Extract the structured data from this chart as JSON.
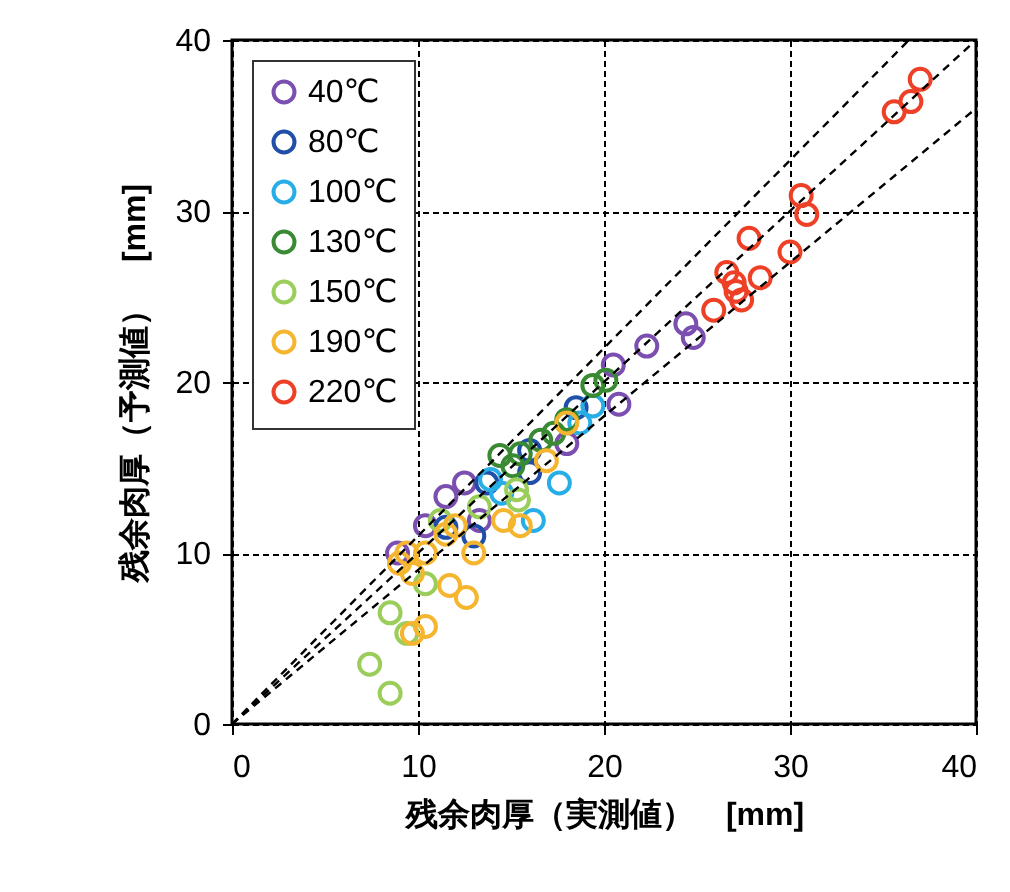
{
  "chart_data": {
    "type": "scatter",
    "xlabel": "残余肉厚（実測値）　[mm]",
    "ylabel": "残余肉厚（予測値）　[mm]",
    "xlim": [
      0,
      40
    ],
    "ylim": [
      0,
      40
    ],
    "xticks": [
      0,
      10,
      20,
      30,
      40
    ],
    "yticks": [
      0,
      10,
      20,
      30,
      40
    ],
    "grid": true,
    "legend": "top left",
    "marker": "circle",
    "series": [
      {
        "name": "40℃",
        "color": "#7a4fb0",
        "x": [
          22.3,
          24.4,
          24.8,
          20.5,
          20.8,
          8.9,
          11.5,
          12.5,
          10.4,
          13.3,
          18.0
        ],
        "values": [
          22.1,
          23.4,
          22.6,
          21.0,
          18.7,
          10.0,
          13.3,
          14.1,
          11.6,
          11.9,
          16.4
        ]
      },
      {
        "name": "80℃",
        "color": "#1f4fa8",
        "x": [
          13.7,
          13.0,
          16.0,
          16.0,
          11.5,
          18.5
        ],
        "values": [
          14.1,
          11.0,
          14.7,
          16.0,
          11.5,
          18.5
        ]
      },
      {
        "name": "100℃",
        "color": "#27aee6",
        "x": [
          17.6,
          16.2,
          18.7,
          19.4,
          13.9,
          14.5
        ],
        "values": [
          14.1,
          11.9,
          17.6,
          18.6,
          14.3,
          13.5
        ]
      },
      {
        "name": "130℃",
        "color": "#3a8a33",
        "x": [
          14.4,
          15.5,
          16.6,
          18.0,
          19.4,
          20.1,
          17.3,
          15.1
        ],
        "values": [
          15.7,
          15.8,
          16.6,
          17.8,
          19.8,
          20.1,
          17.0,
          15.1
        ]
      },
      {
        "name": "150℃",
        "color": "#9acd5a",
        "x": [
          15.3,
          15.4,
          11.2,
          10.4,
          8.5,
          9.4,
          7.4,
          8.5,
          13.3
        ],
        "values": [
          13.7,
          13.1,
          11.9,
          8.2,
          6.5,
          5.3,
          3.5,
          1.8,
          12.7
        ]
      },
      {
        "name": "190℃",
        "color": "#f5b52e",
        "x": [
          9.4,
          9.7,
          10.4,
          11.5,
          12.0,
          13.0,
          11.7,
          12.6,
          10.4,
          9.7,
          14.6,
          15.5,
          16.9,
          18.0,
          9.0
        ],
        "values": [
          10.0,
          8.8,
          10.0,
          11.1,
          11.6,
          10.0,
          8.1,
          7.4,
          5.7,
          5.3,
          11.9,
          11.6,
          15.4,
          17.6,
          9.4
        ]
      },
      {
        "name": "220℃",
        "color": "#ee4026",
        "x": [
          37.0,
          36.5,
          35.6,
          30.6,
          30.9,
          30.0,
          27.8,
          26.6,
          27.0,
          27.1,
          27.4,
          28.4,
          25.9
        ],
        "values": [
          37.7,
          36.4,
          35.8,
          30.9,
          29.8,
          27.6,
          28.4,
          26.4,
          25.8,
          25.3,
          24.8,
          26.1,
          24.2
        ]
      },
      {
        "type": "line",
        "color": "#000000",
        "line_style": "dashed",
        "marker": "none",
        "x": [
          0,
          36.4
        ],
        "values": [
          0,
          40
        ]
      },
      {
        "type": "line",
        "color": "#000000",
        "line_style": "dashed",
        "marker": "none",
        "x": [
          0,
          40
        ],
        "values": [
          0,
          40
        ]
      },
      {
        "type": "line",
        "color": "#000000",
        "line_style": "dashed",
        "marker": "none",
        "x": [
          0,
          40
        ],
        "values": [
          0,
          36
        ]
      }
    ]
  }
}
